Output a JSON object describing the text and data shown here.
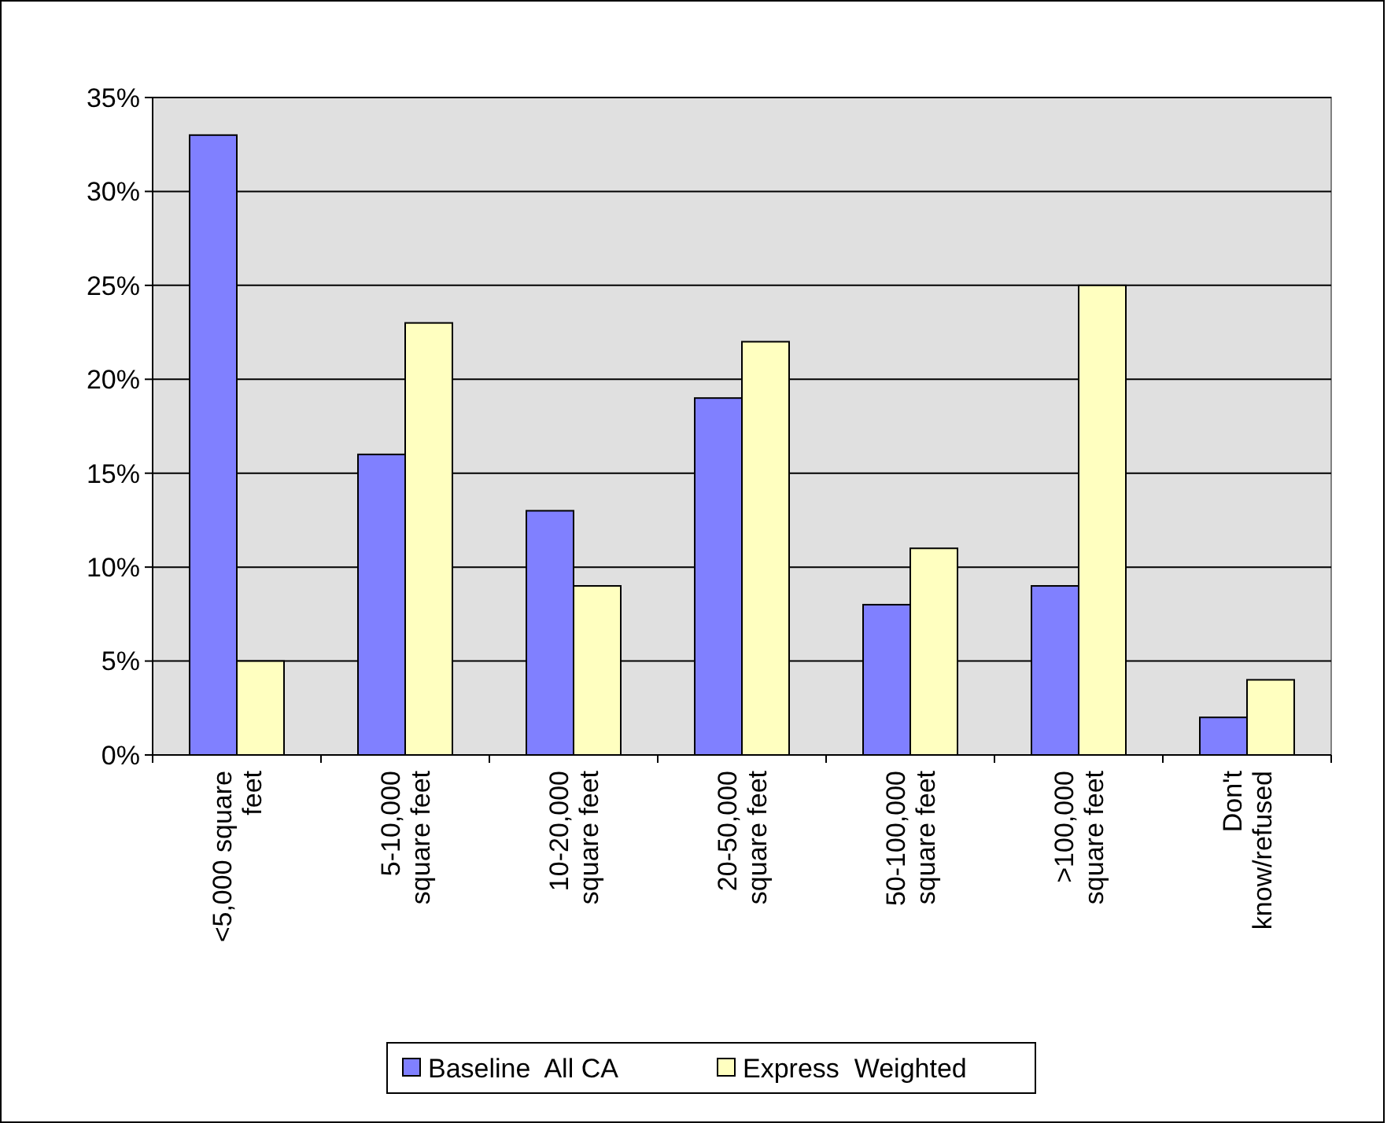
{
  "chart_data": {
    "type": "bar",
    "categories": [
      "<5,000 square feet",
      "5-10,000 square feet",
      "10-20,000 square feet",
      "20-50,000 square feet",
      "50-100,000 square feet",
      ">100,000 square feet",
      "Don't know/refused"
    ],
    "series": [
      {
        "name": "Baseline  All CA",
        "color": "#8080ff",
        "values": [
          33,
          16,
          13,
          19,
          8,
          9,
          2
        ]
      },
      {
        "name": "Express  Weighted",
        "color": "#ffffc0",
        "values": [
          5,
          23,
          9,
          22,
          11,
          25,
          4
        ]
      }
    ],
    "ylim": [
      0,
      35
    ],
    "yticks": [
      {
        "value": 0,
        "label": "0%"
      },
      {
        "value": 5,
        "label": "5%"
      },
      {
        "value": 10,
        "label": "10%"
      },
      {
        "value": 15,
        "label": "15%"
      },
      {
        "value": 20,
        "label": "20%"
      },
      {
        "value": 25,
        "label": "25%"
      },
      {
        "value": 30,
        "label": "30%"
      },
      {
        "value": 35,
        "label": "35%"
      }
    ],
    "grid": "y",
    "legend": "bottom"
  }
}
